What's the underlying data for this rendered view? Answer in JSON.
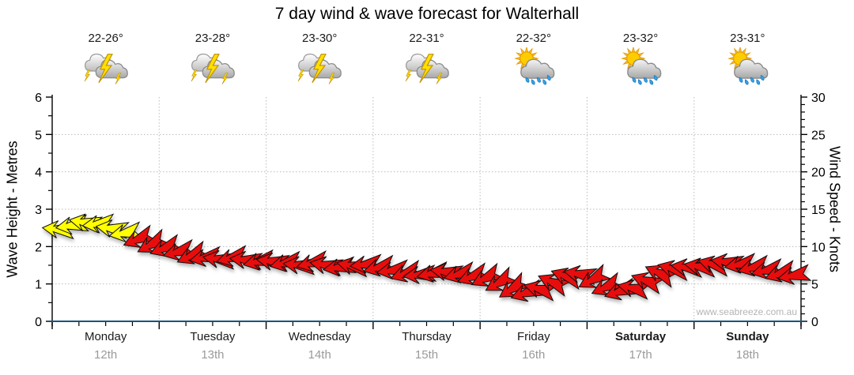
{
  "title": "7 day wind & wave forecast for Walterhall",
  "watermark": "www.seabreeze.com.au",
  "axes": {
    "left_title": "Wave Height - Metres",
    "right_title": "Wind Speed - Knots",
    "left_ticks": [
      0,
      1,
      2,
      3,
      4,
      5,
      6
    ],
    "right_ticks": [
      0,
      5,
      10,
      15,
      20,
      25,
      30
    ]
  },
  "days": [
    {
      "name": "Monday",
      "date": "12th",
      "temp": "22-26°",
      "icon": "thunderstorm",
      "bold": false
    },
    {
      "name": "Tuesday",
      "date": "13th",
      "temp": "23-28°",
      "icon": "thunderstorm",
      "bold": false
    },
    {
      "name": "Wednesday",
      "date": "14th",
      "temp": "23-30°",
      "icon": "thunderstorm",
      "bold": false
    },
    {
      "name": "Thursday",
      "date": "15th",
      "temp": "22-31°",
      "icon": "thunderstorm",
      "bold": false
    },
    {
      "name": "Friday",
      "date": "16th",
      "temp": "22-32°",
      "icon": "sun-cloud-rain",
      "bold": false
    },
    {
      "name": "Saturday",
      "date": "17th",
      "temp": "23-32°",
      "icon": "sun-cloud-rain",
      "bold": true
    },
    {
      "name": "Sunday",
      "date": "18th",
      "temp": "23-31°",
      "icon": "sun-cloud-rain",
      "bold": true
    }
  ],
  "colors": {
    "arrow_yellow": "#ffff00",
    "arrow_red": "#e80f0f",
    "arrow_outline": "#111111",
    "bottom_axis": "#15567d",
    "grid": "#bbbbbb",
    "date_gray": "#9a9a9a"
  },
  "chart_data": {
    "type": "wind-arrow-series",
    "x_unit": "3-hour intervals over 7 days (8 per day)",
    "categories": [
      "Monday 12th",
      "Tuesday 13th",
      "Wednesday 14th",
      "Thursday 15th",
      "Friday 16th",
      "Saturday 17th",
      "Sunday 18th"
    ],
    "wave_axis": {
      "label": "Wave Height - Metres",
      "range": [
        0,
        6
      ]
    },
    "knots_axis": {
      "label": "Wind Speed - Knots",
      "range": [
        0,
        30
      ]
    },
    "grid": "dotted, horizontal each metre, vertical each day",
    "series": [
      {
        "name": "Wind Speed - Knots",
        "yellow_count": 6,
        "values": [
          12.3,
          12.8,
          13.2,
          13.0,
          12.4,
          11.8,
          11.0,
          10.3,
          9.8,
          9.3,
          8.8,
          8.5,
          8.3,
          8.5,
          8.2,
          8.0,
          8.0,
          7.8,
          7.5,
          7.8,
          7.5,
          7.2,
          7.4,
          7.6,
          7.2,
          6.8,
          6.4,
          6.2,
          6.4,
          6.6,
          6.3,
          6.0,
          5.8,
          5.2,
          4.4,
          3.8,
          4.3,
          5.2,
          6.0,
          6.3,
          5.6,
          4.6,
          4.0,
          4.4,
          5.4,
          6.4,
          7.0,
          7.2,
          7.3,
          7.6,
          7.9,
          7.6,
          7.2,
          6.8,
          6.4,
          6.1
        ],
        "rotations": [
          6,
          -8,
          10,
          -6,
          8,
          -10,
          -22,
          -28,
          -20,
          -14,
          -24,
          -10,
          8,
          -14,
          6,
          -12,
          8,
          -12,
          6,
          -14,
          10,
          -8,
          12,
          -6,
          -14,
          -8,
          -18,
          -5,
          -12,
          8,
          -15,
          -20,
          -25,
          -30,
          -33,
          -18,
          15,
          24,
          20,
          10,
          -28,
          -24,
          -18,
          12,
          20,
          25,
          15,
          8,
          10,
          15,
          8,
          -10,
          -14,
          -12,
          -18,
          -10
        ]
      }
    ]
  }
}
